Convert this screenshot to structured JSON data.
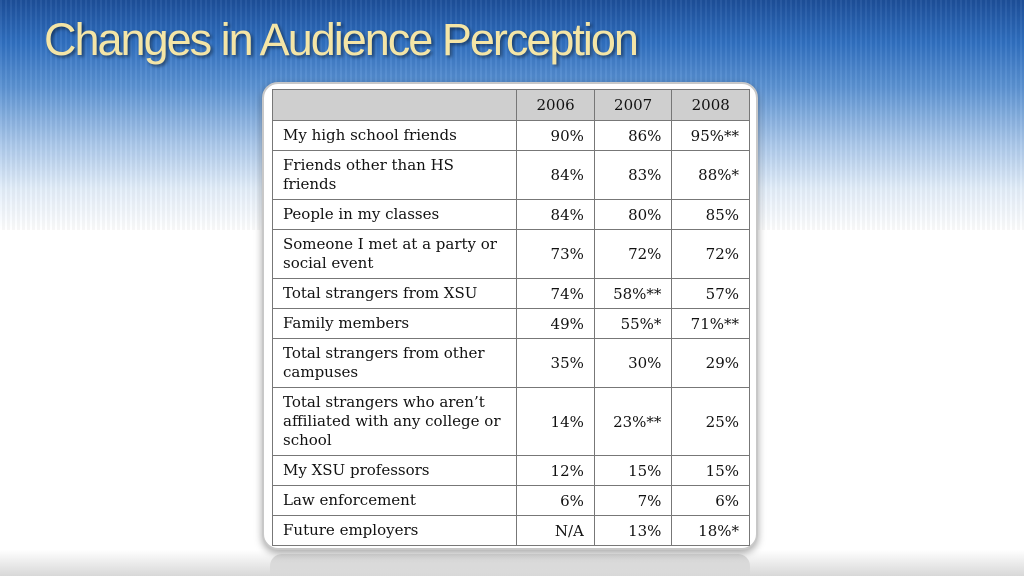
{
  "slide": {
    "title": "Changes in Audience Perception"
  },
  "table": {
    "columns": [
      "",
      "2006",
      "2007",
      "2008"
    ],
    "rows": [
      {
        "label": "My high school friends",
        "values": [
          "90%",
          "86%",
          "95%**"
        ]
      },
      {
        "label": "Friends other than HS friends",
        "values": [
          "84%",
          "83%",
          "88%*"
        ]
      },
      {
        "label": "People in my classes",
        "values": [
          "84%",
          "80%",
          "85%"
        ]
      },
      {
        "label": "Someone I met at a party or social event",
        "values": [
          "73%",
          "72%",
          "72%"
        ]
      },
      {
        "label": "Total strangers from XSU",
        "values": [
          "74%",
          "58%**",
          "57%"
        ]
      },
      {
        "label": "Family members",
        "values": [
          "49%",
          "55%*",
          "71%**"
        ]
      },
      {
        "label": "Total strangers from other campuses",
        "values": [
          "35%",
          "30%",
          "29%"
        ]
      },
      {
        "label": "Total strangers who aren’t affiliated with any college or school",
        "values": [
          "14%",
          "23%**",
          "25%"
        ]
      },
      {
        "label": "My XSU professors",
        "values": [
          "12%",
          "15%",
          "15%"
        ]
      },
      {
        "label": "Law enforcement",
        "values": [
          "6%",
          "7%",
          "6%"
        ]
      },
      {
        "label": "Future employers",
        "values": [
          "N/A",
          "13%",
          "18%*"
        ]
      }
    ]
  }
}
